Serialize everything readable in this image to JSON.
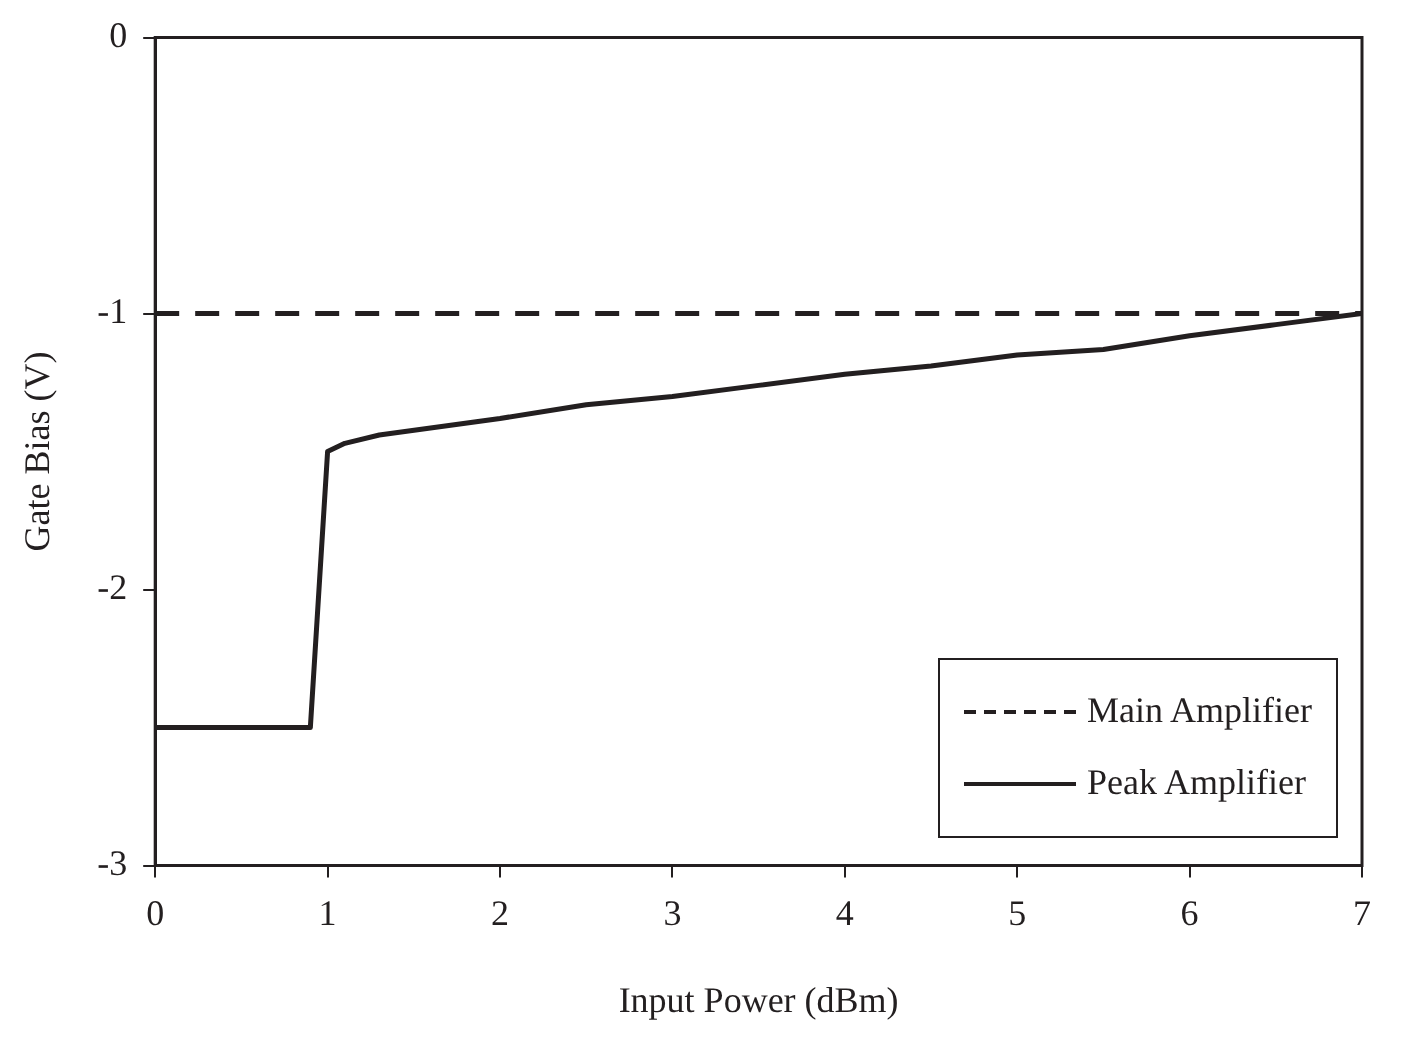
{
  "chart_data": {
    "type": "line",
    "xlabel": "Input Power (dBm)",
    "ylabel": "Gate Bias (V)",
    "xlim": [
      0,
      7
    ],
    "xticks": [
      0,
      1,
      2,
      3,
      4,
      5,
      6,
      7
    ],
    "ylim": [
      -3,
      0
    ],
    "yticks": [
      -3,
      -2,
      -1,
      0
    ],
    "grid": false,
    "legend": "bottom right",
    "marker": "none",
    "series": [
      {
        "name": "Main Amplifier",
        "color": "#231f20",
        "line_style": "dashed",
        "x": [
          0,
          7
        ],
        "values": [
          -1,
          -1
        ]
      },
      {
        "name": "Peak Amplifier",
        "color": "#231f20",
        "line_style": "solid",
        "x": [
          0,
          0.9,
          1,
          1.1,
          1.3,
          2,
          2.5,
          3,
          3.5,
          4,
          4.5,
          5,
          5.5,
          6,
          6.5,
          7
        ],
        "values": [
          -2.5,
          -2.5,
          -1.5,
          -1.47,
          -1.44,
          -1.38,
          -1.33,
          -1.3,
          -1.26,
          -1.22,
          -1.19,
          -1.15,
          -1.13,
          -1.08,
          -1.04,
          -1.0
        ]
      }
    ]
  }
}
